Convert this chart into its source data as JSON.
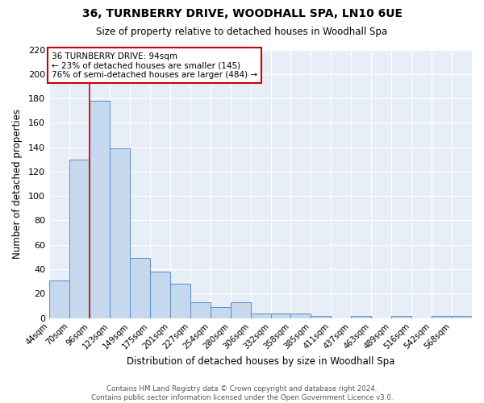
{
  "title": "36, TURNBERRY DRIVE, WOODHALL SPA, LN10 6UE",
  "subtitle": "Size of property relative to detached houses in Woodhall Spa",
  "xlabel": "Distribution of detached houses by size in Woodhall Spa",
  "ylabel": "Number of detached properties",
  "categories": [
    "44sqm",
    "70sqm",
    "96sqm",
    "123sqm",
    "149sqm",
    "175sqm",
    "201sqm",
    "227sqm",
    "254sqm",
    "280sqm",
    "306sqm",
    "332sqm",
    "358sqm",
    "385sqm",
    "411sqm",
    "437sqm",
    "463sqm",
    "489sqm",
    "516sqm",
    "542sqm",
    "568sqm"
  ],
  "values": [
    31,
    130,
    178,
    139,
    49,
    38,
    28,
    13,
    9,
    13,
    4,
    4,
    4,
    2,
    0,
    2,
    0,
    2,
    0,
    2,
    2
  ],
  "bar_color": "#c5d8ed",
  "bar_edge_color": "#5b8dc8",
  "vline_color": "#cc0000",
  "annotation_text": "36 TURNBERRY DRIVE: 94sqm\n← 23% of detached houses are smaller (145)\n76% of semi-detached houses are larger (484) →",
  "annotation_box_color": "#ffffff",
  "annotation_box_edge_color": "#cc0000",
  "ylim": [
    0,
    220
  ],
  "yticks": [
    0,
    20,
    40,
    60,
    80,
    100,
    120,
    140,
    160,
    180,
    200,
    220
  ],
  "background_color": "#ffffff",
  "plot_bg_color": "#e8eef7",
  "grid_color": "#ffffff",
  "footnote": "Contains HM Land Registry data © Crown copyright and database right 2024.\nContains public sector information licensed under the Open Government Licence v3.0."
}
